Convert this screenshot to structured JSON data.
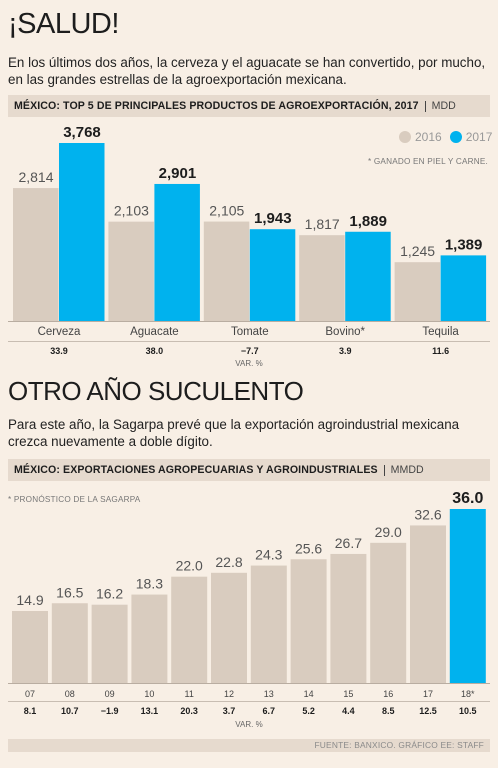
{
  "section1": {
    "headline": "¡SALUD!",
    "intro": "En los últimos dos años, la cerveza y el aguacate se han convertido, por mucho, en las grandes estrellas de la agroexportación mexicana.",
    "band_title": "MÉXICO: TOP 5 DE PRINCIPALES PRODUCTOS DE AGROEXPORTACIÓN, 2017",
    "band_unit": "MDD",
    "note": "* GANADO EN PIEL Y CARNE.",
    "legend": [
      "2016",
      "2017"
    ]
  },
  "section2": {
    "headline": "OTRO AÑO SUCULENTO",
    "intro": "Para este año, la Sagarpa prevé que la exportación agroindustrial mexicana crezca nuevamente a doble dígito.",
    "band_title": "MÉXICO: EXPORTACIONES AGROPECUARIAS Y AGROINDUSTRIALES",
    "band_unit": "MMDD",
    "note": "* PRONÓSTICO DE LA SAGARPA"
  },
  "footer": "FUENTE: BANXICO.  GRÁFICO EE: STAFF",
  "colors": {
    "prev": "#d9ccbf",
    "current": "#00b2ee",
    "background": "#f8efe5",
    "band": "#e6dace"
  },
  "chart_data": [
    {
      "type": "bar",
      "categories": [
        "Cerveza",
        "Aguacate",
        "Tomate",
        "Bovino*",
        "Tequila"
      ],
      "series": [
        {
          "name": "2016",
          "values": [
            2814,
            2103,
            2105,
            1817,
            1245
          ],
          "labels": [
            "2,814",
            "2,103",
            "2,105",
            "1,817",
            "1,245"
          ]
        },
        {
          "name": "2017",
          "values": [
            3768,
            2901,
            1943,
            1889,
            1389
          ],
          "labels": [
            "3,768",
            "2,901",
            "1,943",
            "1,889",
            "1,389"
          ]
        }
      ],
      "var_pct": [
        "33.9",
        "38.0",
        "-7.7",
        "3.9",
        "11.6"
      ],
      "var_label": "VAR. %"
    },
    {
      "type": "bar",
      "categories": [
        "07",
        "08",
        "09",
        "10",
        "11",
        "12",
        "13",
        "14",
        "15",
        "16",
        "17",
        "18*"
      ],
      "values": [
        14.9,
        16.5,
        16.2,
        18.3,
        22.0,
        22.8,
        24.3,
        25.6,
        26.7,
        29.0,
        32.6,
        36.0
      ],
      "labels": [
        "14.9",
        "16.5",
        "16.2",
        "18.3",
        "22.0",
        "22.8",
        "24.3",
        "25.6",
        "26.7",
        "29.0",
        "32.6",
        "36.0"
      ],
      "highlight_index": 11,
      "var_pct": [
        "8.1",
        "10.7",
        "-1.9",
        "13.1",
        "20.3",
        "3.7",
        "6.7",
        "5.2",
        "4.4",
        "8.5",
        "12.5",
        "10.5"
      ],
      "var_label": "VAR. %"
    }
  ]
}
